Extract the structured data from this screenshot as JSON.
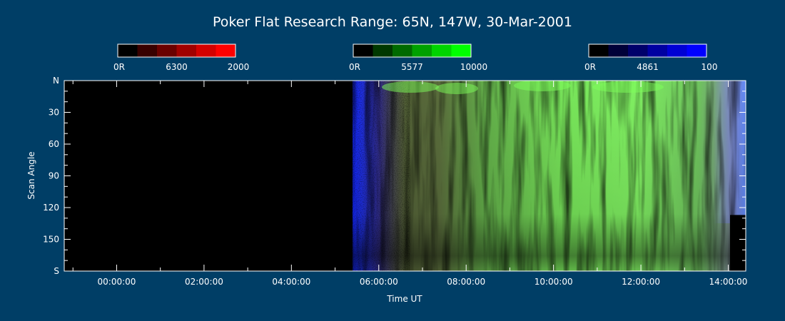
{
  "chart_data": {
    "type": "heatmap",
    "title": "Poker Flat Research Range: 65N, 147W, 30-Mar-2001",
    "xlabel": "Time UT",
    "ylabel": "Scan Angle",
    "x_ticks": [
      "00:00:00",
      "02:00:00",
      "04:00:00",
      "06:00:00",
      "08:00:00",
      "10:00:00",
      "12:00:00",
      "14:00:00"
    ],
    "x_range_hours": [
      -1.2,
      14.4
    ],
    "y_range_deg": [
      0,
      180
    ],
    "y_ticks": [
      {
        "label": "N",
        "value": 0
      },
      {
        "label": "30",
        "value": 30
      },
      {
        "label": "60",
        "value": 60
      },
      {
        "label": "90",
        "value": 90
      },
      {
        "label": "120",
        "value": 120
      },
      {
        "label": "150",
        "value": 150
      },
      {
        "label": "S",
        "value": 180
      }
    ],
    "no_data_until_hours": 5.4,
    "colorbars": [
      {
        "name": "6300",
        "min_label": "0R",
        "max_label": "2000",
        "colors": [
          "#000000",
          "#380000",
          "#6a0000",
          "#a10000",
          "#d40000",
          "#ff0000"
        ]
      },
      {
        "name": "5577",
        "min_label": "0R",
        "max_label": "10000",
        "colors": [
          "#000000",
          "#003800",
          "#006a00",
          "#00a100",
          "#00d400",
          "#00ff00"
        ]
      },
      {
        "name": "4861",
        "min_label": "0R",
        "max_label": "100",
        "colors": [
          "#000000",
          "#000038",
          "#00006a",
          "#0000a1",
          "#0000d4",
          "#0000ff"
        ]
      }
    ],
    "colors": {
      "background": "#003e66",
      "axis": "#ffffff",
      "no_data": "#000000"
    }
  }
}
